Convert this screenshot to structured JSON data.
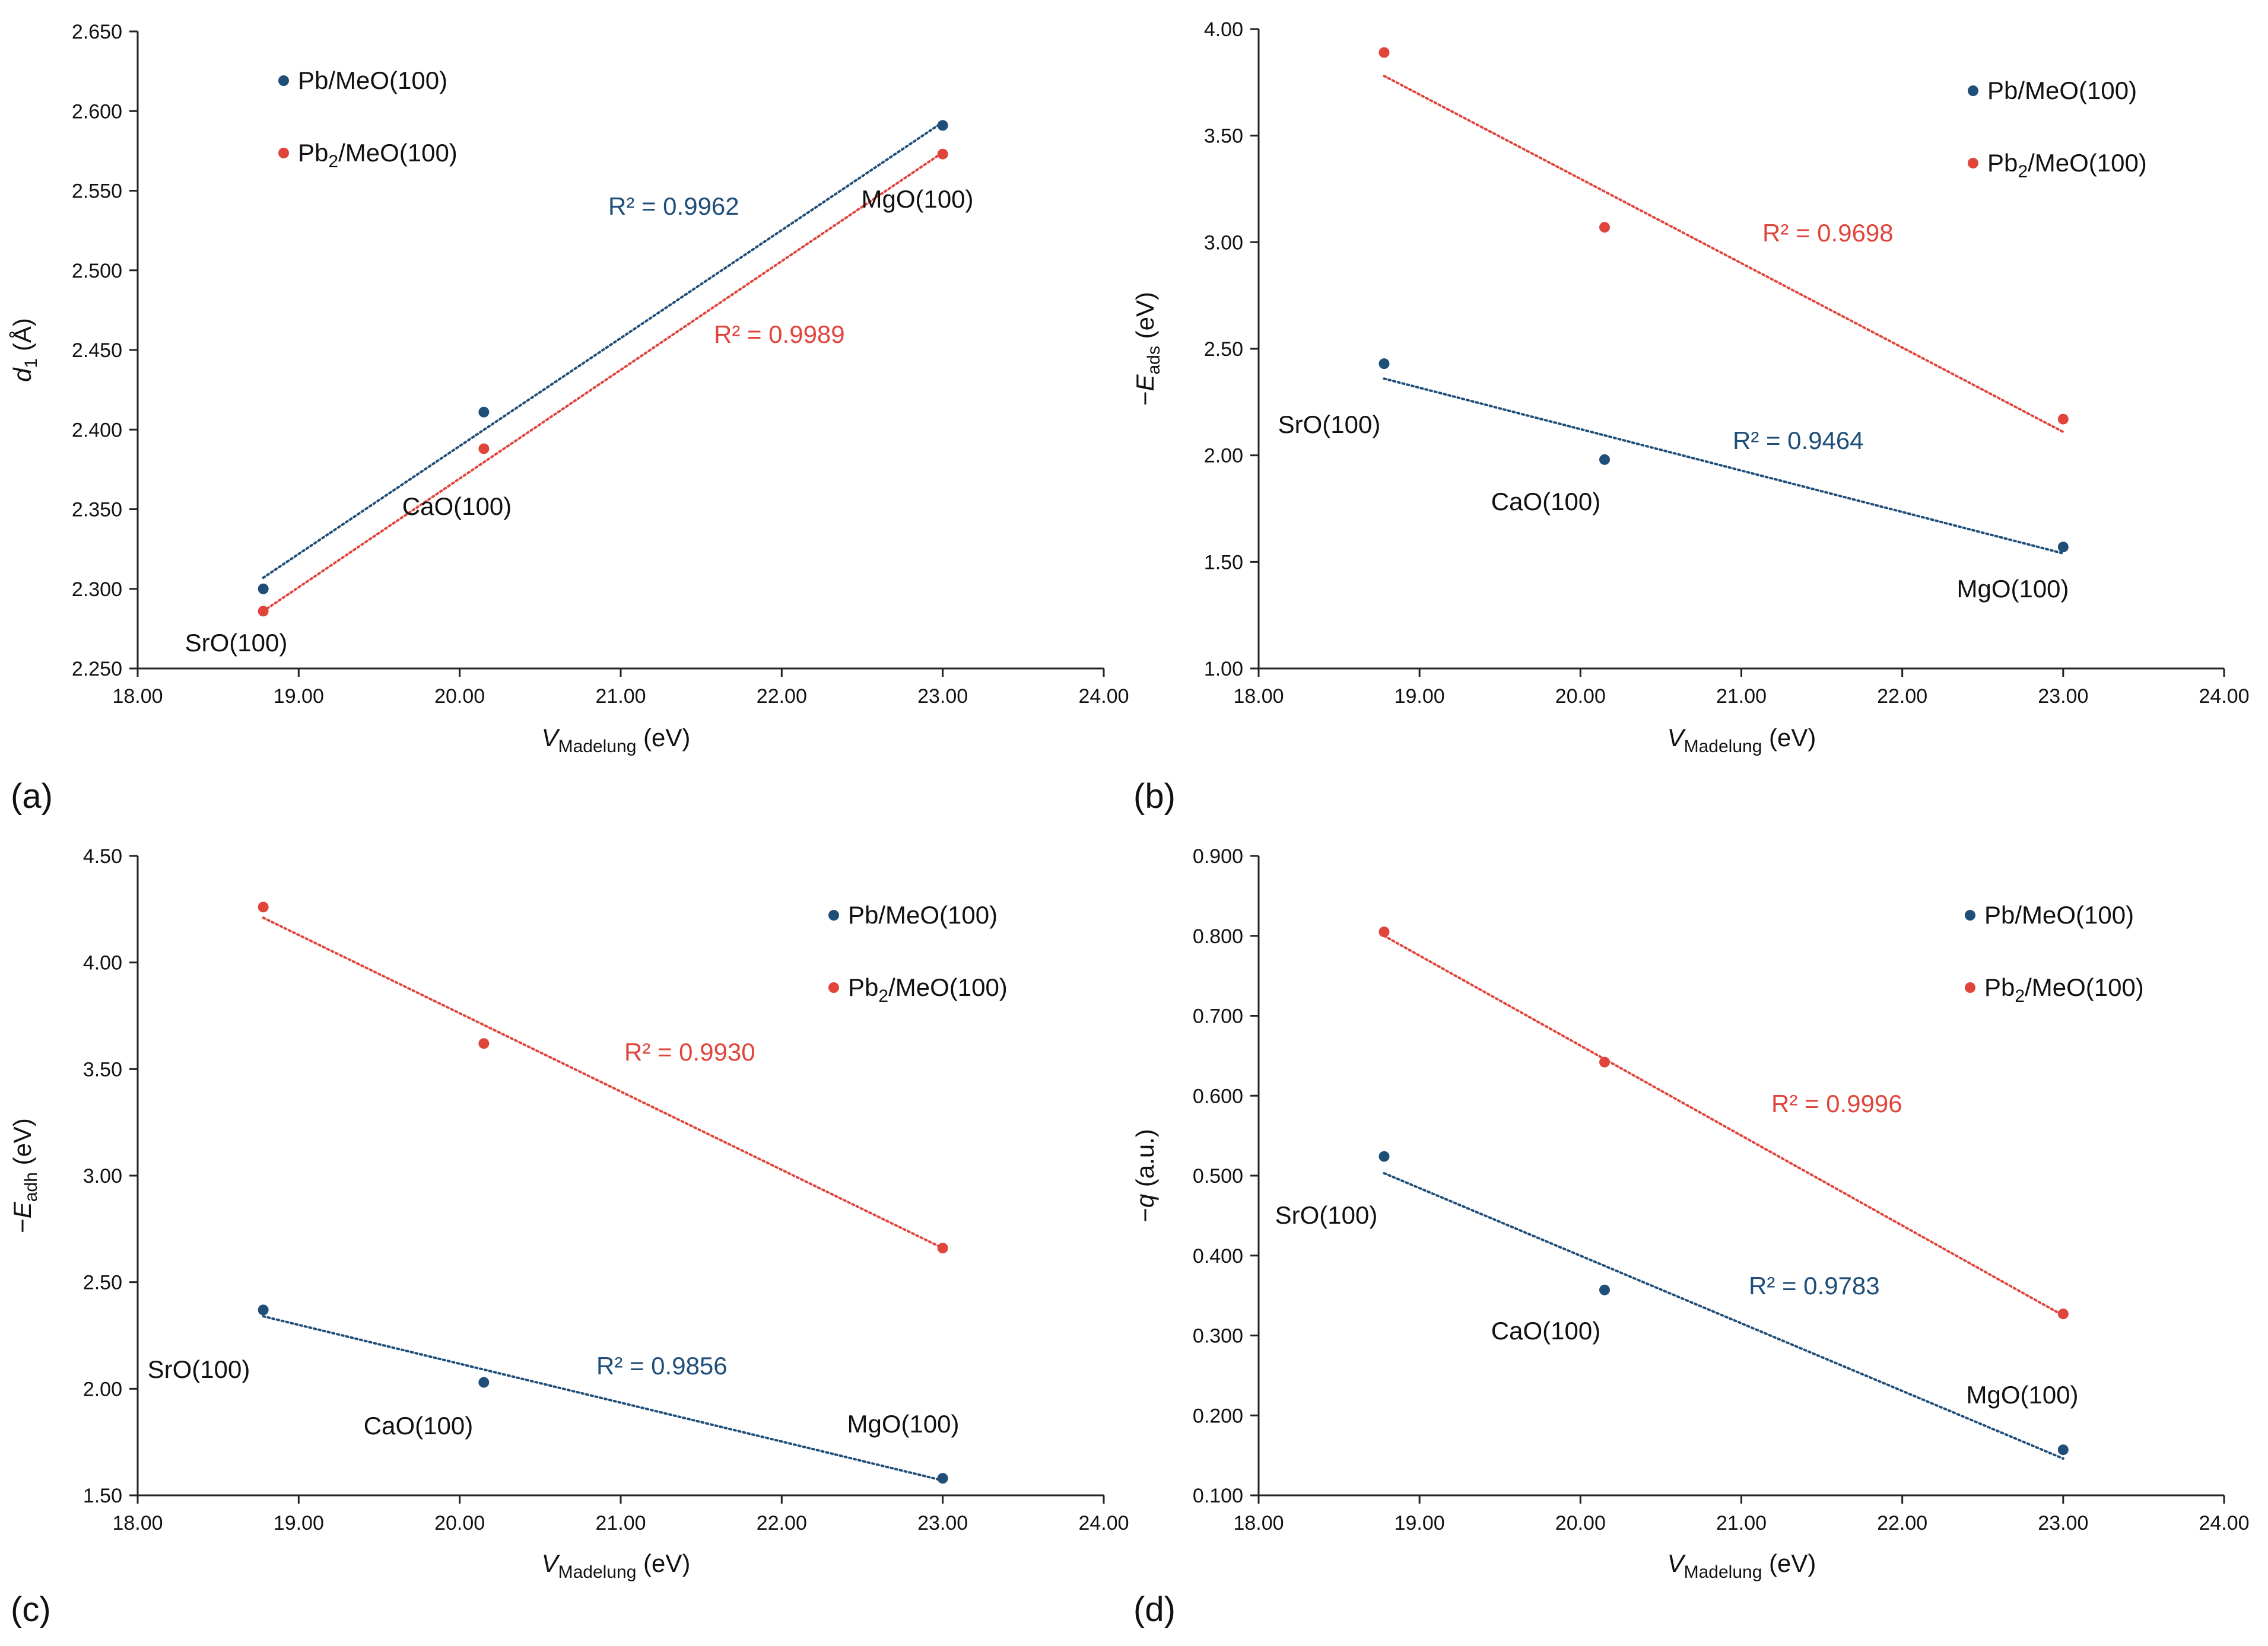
{
  "colors": {
    "blue": "#1f4e79",
    "red": "#e0453c",
    "axis": "#222222",
    "text": "#111111"
  },
  "chart_data": [
    {
      "panel_label": "(a)",
      "type": "scatter",
      "ylabel_main": "d",
      "ylabel_sub": "1",
      "ylabel_rest": " (Å)",
      "ylabel_prefix": "",
      "xlabel_main": "V",
      "xlabel_sub": "Madelung",
      "xlabel_rest": " (eV)",
      "xlim": [
        18,
        24
      ],
      "xticks": [
        "18.00",
        "19.00",
        "20.00",
        "21.00",
        "22.00",
        "23.00",
        "24.00"
      ],
      "ylim": [
        2.25,
        2.65
      ],
      "yticks": [
        "2.250",
        "2.300",
        "2.350",
        "2.400",
        "2.450",
        "2.500",
        "2.550",
        "2.600",
        "2.650"
      ],
      "legend": {
        "position": "top-left",
        "entries": [
          {
            "text": "Pb/MeO(100)",
            "sub": "",
            "rest": ""
          },
          {
            "text": "Pb",
            "sub": "2",
            "rest": "/MeO(100)"
          }
        ]
      },
      "series": [
        {
          "name": "Pb/MeO(100)",
          "color": "blue",
          "x": [
            18.78,
            20.15,
            23.0
          ],
          "y": [
            2.3,
            2.411,
            2.591
          ],
          "fit": [
            [
              18.78,
              2.307
            ],
            [
              23.0,
              2.593
            ]
          ],
          "r2_label": "R² = 0.9962"
        },
        {
          "name": "Pb2/MeO(100)",
          "color": "red",
          "x": [
            18.78,
            20.15,
            23.0
          ],
          "y": [
            2.286,
            2.388,
            2.573
          ],
          "fit": [
            [
              18.78,
              2.286
            ],
            [
              23.0,
              2.574
            ]
          ],
          "r2_label": "R² = 0.9989"
        }
      ],
      "point_labels": [
        "SrO(100)",
        "CaO(100)",
        "MgO(100)"
      ]
    },
    {
      "panel_label": "(b)",
      "type": "scatter",
      "ylabel_prefix": "−",
      "ylabel_main": "E",
      "ylabel_sub": "ads",
      "ylabel_rest": " (eV)",
      "xlabel_main": "V",
      "xlabel_sub": "Madelung",
      "xlabel_rest": " (eV)",
      "xlim": [
        18,
        24
      ],
      "xticks": [
        "18.00",
        "19.00",
        "20.00",
        "21.00",
        "22.00",
        "23.00",
        "24.00"
      ],
      "ylim": [
        1.0,
        4.0
      ],
      "yticks": [
        "1.00",
        "1.50",
        "2.00",
        "2.50",
        "3.00",
        "3.50",
        "4.00"
      ],
      "legend": {
        "position": "top-right",
        "entries": [
          {
            "text": "Pb/MeO(100)",
            "sub": "",
            "rest": ""
          },
          {
            "text": "Pb",
            "sub": "2",
            "rest": "/MeO(100)"
          }
        ]
      },
      "series": [
        {
          "name": "Pb/MeO(100)",
          "color": "blue",
          "x": [
            18.78,
            20.15,
            23.0
          ],
          "y": [
            2.43,
            1.98,
            1.57
          ],
          "fit": [
            [
              18.78,
              2.36
            ],
            [
              23.0,
              1.54
            ]
          ],
          "r2_label": "R² = 0.9464"
        },
        {
          "name": "Pb2/MeO(100)",
          "color": "red",
          "x": [
            18.78,
            20.15,
            23.0
          ],
          "y": [
            3.89,
            3.07,
            2.17
          ],
          "fit": [
            [
              18.78,
              3.78
            ],
            [
              23.0,
              2.11
            ]
          ],
          "r2_label": "R² = 0.9698"
        }
      ],
      "point_labels": [
        "SrO(100)",
        "CaO(100)",
        "MgO(100)"
      ]
    },
    {
      "panel_label": "(c)",
      "type": "scatter",
      "ylabel_prefix": "−",
      "ylabel_main": "E",
      "ylabel_sub": "adh",
      "ylabel_rest": " (eV)",
      "xlabel_main": "V",
      "xlabel_sub": "Madelung",
      "xlabel_rest": " (eV)",
      "xlim": [
        18,
        24
      ],
      "xticks": [
        "18.00",
        "19.00",
        "20.00",
        "21.00",
        "22.00",
        "23.00",
        "24.00"
      ],
      "ylim": [
        1.5,
        4.5
      ],
      "yticks": [
        "1.50",
        "2.00",
        "2.50",
        "3.00",
        "3.50",
        "4.00",
        "4.50"
      ],
      "legend": {
        "position": "top-right",
        "entries": [
          {
            "text": "Pb/MeO(100)",
            "sub": "",
            "rest": ""
          },
          {
            "text": "Pb",
            "sub": "2",
            "rest": "/MeO(100)"
          }
        ]
      },
      "series": [
        {
          "name": "Pb/MeO(100)",
          "color": "blue",
          "x": [
            18.78,
            20.15,
            23.0
          ],
          "y": [
            2.37,
            2.03,
            1.58
          ],
          "fit": [
            [
              18.78,
              2.34
            ],
            [
              23.0,
              1.57
            ]
          ],
          "r2_label": "R² = 0.9856"
        },
        {
          "name": "Pb2/MeO(100)",
          "color": "red",
          "x": [
            18.78,
            20.15,
            23.0
          ],
          "y": [
            4.26,
            3.62,
            2.66
          ],
          "fit": [
            [
              18.78,
              4.21
            ],
            [
              23.0,
              2.66
            ]
          ],
          "r2_label": "R² = 0.9930"
        }
      ],
      "point_labels": [
        "SrO(100)",
        "CaO(100)",
        "MgO(100)"
      ]
    },
    {
      "panel_label": "(d)",
      "type": "scatter",
      "ylabel_prefix": "−",
      "ylabel_main": "q",
      "ylabel_sub": "",
      "ylabel_rest": " (a.u.)",
      "xlabel_main": "V",
      "xlabel_sub": "Madelung",
      "xlabel_rest": " (eV)",
      "xlim": [
        18,
        24
      ],
      "xticks": [
        "18.00",
        "19.00",
        "20.00",
        "21.00",
        "22.00",
        "23.00",
        "24.00"
      ],
      "ylim": [
        0.1,
        0.9
      ],
      "yticks": [
        "0.100",
        "0.200",
        "0.300",
        "0.400",
        "0.500",
        "0.600",
        "0.700",
        "0.800",
        "0.900"
      ],
      "legend": {
        "position": "top-right",
        "entries": [
          {
            "text": "Pb/MeO(100)",
            "sub": "",
            "rest": ""
          },
          {
            "text": "Pb",
            "sub": "2",
            "rest": "/MeO(100)"
          }
        ]
      },
      "series": [
        {
          "name": "Pb/MeO(100)",
          "color": "blue",
          "x": [
            18.78,
            20.15,
            23.0
          ],
          "y": [
            0.524,
            0.357,
            0.157
          ],
          "fit": [
            [
              18.78,
              0.503
            ],
            [
              23.0,
              0.146
            ]
          ],
          "r2_label": "R² = 0.9783"
        },
        {
          "name": "Pb2/MeO(100)",
          "color": "red",
          "x": [
            18.78,
            20.15,
            23.0
          ],
          "y": [
            0.805,
            0.642,
            0.327
          ],
          "fit": [
            [
              18.78,
              0.8
            ],
            [
              23.0,
              0.325
            ]
          ],
          "r2_label": "R² = 0.9996"
        }
      ],
      "point_labels": [
        "SrO(100)",
        "CaO(100)",
        "MgO(100)"
      ]
    }
  ]
}
